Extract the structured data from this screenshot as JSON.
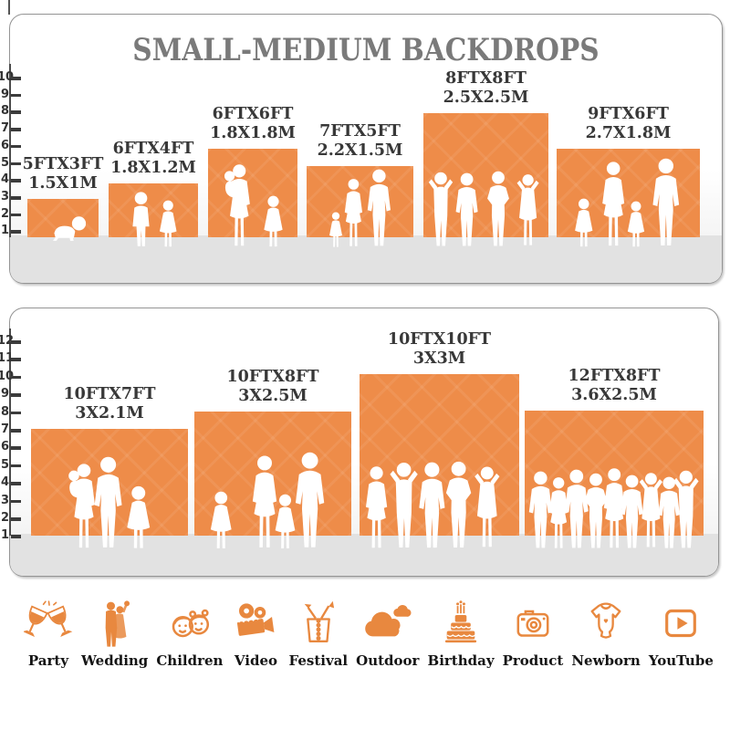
{
  "title": "SMALL-MEDIUM BACKDROPS",
  "colors": {
    "backdrop_orange": "#ee8c49",
    "icon_orange": "#e8883f",
    "title_gray": "#7a7a7a",
    "ground_gray": "#e2e2e2"
  },
  "panel_top": {
    "ruler_labels": [
      "10",
      "9",
      "8",
      "7",
      "6",
      "5",
      "4",
      "3",
      "2",
      "1"
    ],
    "backdrops": [
      {
        "size_ft": "5FTX3FT",
        "size_m": "1.5X1M"
      },
      {
        "size_ft": "6FTX4FT",
        "size_m": "1.8X1.2M"
      },
      {
        "size_ft": "6FTX6FT",
        "size_m": "1.8X1.8M"
      },
      {
        "size_ft": "7FTX5FT",
        "size_m": "2.2X1.5M"
      },
      {
        "size_ft": "8FTX8FT",
        "size_m": "2.5X2.5M"
      },
      {
        "size_ft": "9FTX6FT",
        "size_m": "2.7X1.8M"
      }
    ]
  },
  "panel_bottom": {
    "ruler_labels": [
      "12",
      "11",
      "10",
      "9",
      "8",
      "7",
      "6",
      "5",
      "4",
      "3",
      "2",
      "1"
    ],
    "backdrops": [
      {
        "size_ft": "10FTX7FT",
        "size_m": "3X2.1M"
      },
      {
        "size_ft": "10FTX8FT",
        "size_m": "3X2.5M"
      },
      {
        "size_ft": "10FTX10FT",
        "size_m": "3X3M"
      },
      {
        "size_ft": "12FTX8FT",
        "size_m": "3.6X2.5M"
      }
    ]
  },
  "categories": [
    {
      "label": "Party",
      "icon": "party-icon"
    },
    {
      "label": "Wedding",
      "icon": "wedding-icon"
    },
    {
      "label": "Children",
      "icon": "children-icon"
    },
    {
      "label": "Video",
      "icon": "video-icon"
    },
    {
      "label": "Festival",
      "icon": "festival-icon"
    },
    {
      "label": "Outdoor",
      "icon": "outdoor-icon"
    },
    {
      "label": "Birthday",
      "icon": "birthday-icon"
    },
    {
      "label": "Product",
      "icon": "product-icon"
    },
    {
      "label": "Newborn",
      "icon": "newborn-icon"
    },
    {
      "label": "YouTube",
      "icon": "youtube-icon"
    }
  ]
}
